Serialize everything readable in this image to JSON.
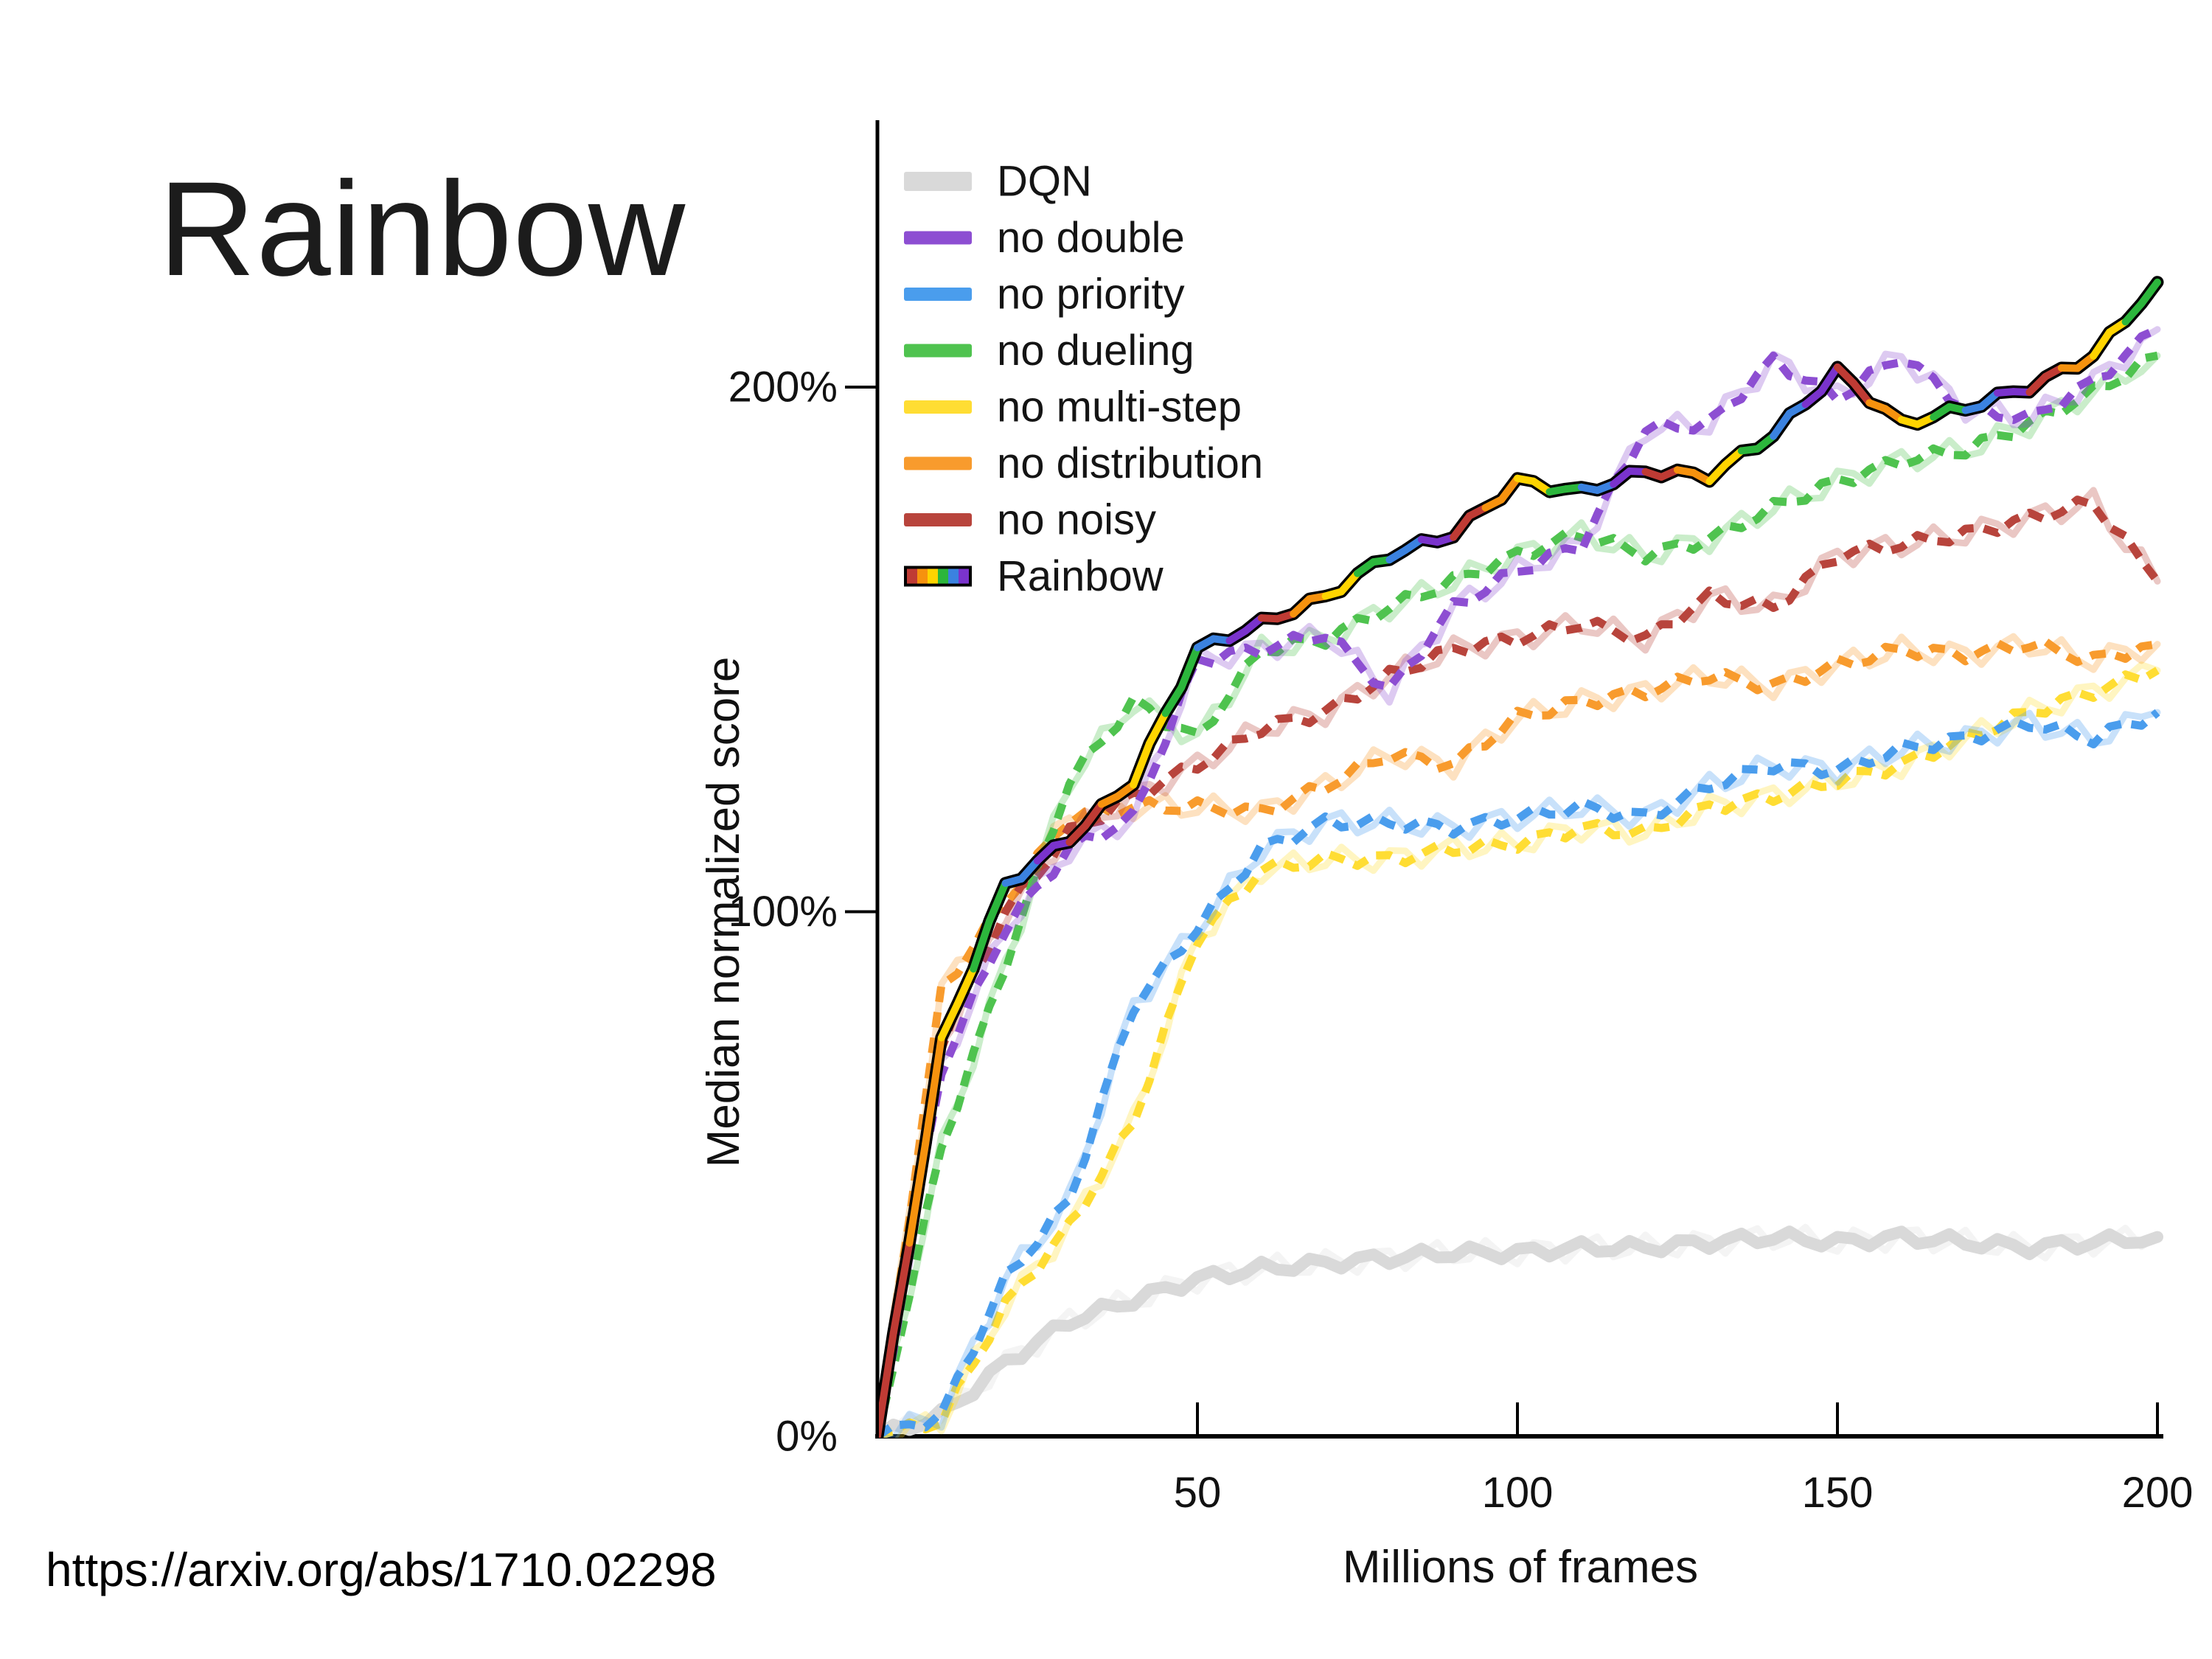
{
  "slide": {
    "title": "Rainbow",
    "source_url": "https://arxiv.org/abs/1710.02298"
  },
  "chart_data": {
    "type": "line",
    "title": "",
    "xlabel": "Millions of frames",
    "ylabel": "Median normalized score",
    "xlim": [
      0,
      202
    ],
    "ylim_pct": [
      0,
      250
    ],
    "grid": false,
    "legend_position": "upper left",
    "x_ticks": [
      {
        "label": "50",
        "value": 50
      },
      {
        "label": "100",
        "value": 100
      },
      {
        "label": "150",
        "value": 150
      },
      {
        "label": "200",
        "value": 200
      }
    ],
    "y_ticks": [
      {
        "label": "0%",
        "value": 0
      },
      {
        "label": "100%",
        "value": 100
      },
      {
        "label": "200%",
        "value": 200
      }
    ],
    "x": [
      0,
      10,
      20,
      30,
      40,
      50,
      60,
      70,
      80,
      90,
      100,
      110,
      120,
      130,
      140,
      150,
      160,
      170,
      180,
      190,
      200
    ],
    "series": [
      {
        "name": "DQN",
        "color": "#d9d9d9",
        "style": "solid-thick",
        "values": [
          0,
          4,
          14,
          22,
          26,
          30,
          32,
          33,
          34,
          35,
          35,
          36,
          36,
          37,
          38,
          37,
          38,
          37,
          36,
          37,
          38
        ]
      },
      {
        "name": "no double",
        "color": "#8d4ed2",
        "style": "dashed",
        "values": [
          0,
          70,
          97,
          112,
          118,
          148,
          150,
          153,
          142,
          158,
          165,
          170,
          192,
          193,
          205,
          198,
          206,
          196,
          194,
          201,
          211
        ]
      },
      {
        "name": "no priority",
        "color": "#4a9ded",
        "style": "dashed",
        "values": [
          0,
          4,
          30,
          45,
          82,
          97,
          112,
          117,
          117,
          116,
          118,
          120,
          118,
          124,
          128,
          127,
          131,
          133,
          136,
          133,
          138
        ]
      },
      {
        "name": "no dueling",
        "color": "#4fc34f",
        "style": "dashed",
        "values": [
          0,
          55,
          90,
          125,
          140,
          133,
          150,
          152,
          158,
          163,
          168,
          172,
          168,
          171,
          177,
          182,
          186,
          188,
          193,
          199,
          206
        ]
      },
      {
        "name": "no multi-step",
        "color": "#ffdd33",
        "style": "dashed",
        "values": [
          0,
          3,
          25,
          40,
          60,
          95,
          108,
          110,
          110,
          112,
          113,
          116,
          115,
          120,
          122,
          125,
          128,
          133,
          138,
          142,
          146
        ]
      },
      {
        "name": "no distribution",
        "color": "#f89b2d",
        "style": "dashed",
        "values": [
          0,
          85,
          102,
          118,
          120,
          120,
          119,
          124,
          130,
          128,
          137,
          140,
          142,
          145,
          143,
          147,
          150,
          149,
          151,
          148,
          151
        ]
      },
      {
        "name": "no noisy",
        "color": "#b8443c",
        "style": "dashed",
        "values": [
          0,
          75,
          100,
          115,
          122,
          128,
          135,
          138,
          145,
          150,
          152,
          155,
          152,
          160,
          158,
          168,
          170,
          172,
          175,
          178,
          163
        ]
      },
      {
        "name": "Rainbow",
        "style": "multicolor",
        "colors": [
          "#bf3b34",
          "#f6920e",
          "#ffd400",
          "#2cb63c",
          "#3b82e0",
          "#7a33cc"
        ],
        "values": [
          0,
          75,
          105,
          114,
          125,
          150,
          155,
          160,
          168,
          172,
          182,
          180,
          184,
          183,
          191,
          203,
          193,
          196,
          200,
          206,
          220
        ]
      }
    ]
  }
}
